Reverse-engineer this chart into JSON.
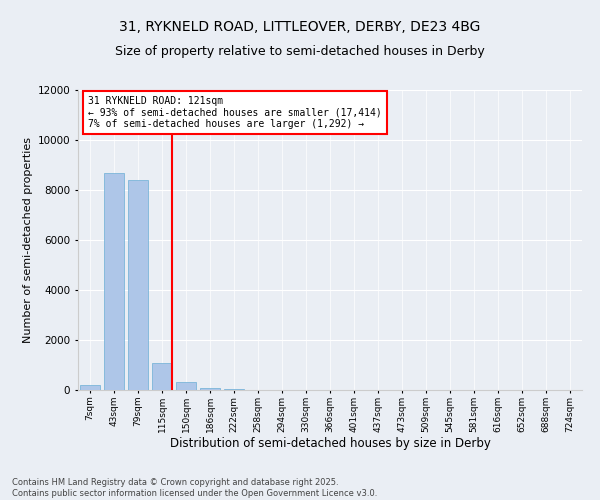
{
  "title1": "31, RYKNELD ROAD, LITTLEOVER, DERBY, DE23 4BG",
  "title2": "Size of property relative to semi-detached houses in Derby",
  "xlabel": "Distribution of semi-detached houses by size in Derby",
  "ylabel": "Number of semi-detached properties",
  "categories": [
    "7sqm",
    "43sqm",
    "79sqm",
    "115sqm",
    "150sqm",
    "186sqm",
    "222sqm",
    "258sqm",
    "294sqm",
    "330sqm",
    "366sqm",
    "401sqm",
    "437sqm",
    "473sqm",
    "509sqm",
    "545sqm",
    "581sqm",
    "616sqm",
    "652sqm",
    "688sqm",
    "724sqm"
  ],
  "values": [
    200,
    8700,
    8400,
    1100,
    330,
    90,
    50,
    0,
    0,
    0,
    0,
    0,
    0,
    0,
    0,
    0,
    0,
    0,
    0,
    0,
    0
  ],
  "bar_color": "#aec6e8",
  "bar_edgecolor": "#6baed6",
  "bg_color": "#eaeef4",
  "vline_color": "red",
  "annotation_text": "31 RYKNELD ROAD: 121sqm\n← 93% of semi-detached houses are smaller (17,414)\n7% of semi-detached houses are larger (1,292) →",
  "ylim": [
    0,
    12000
  ],
  "yticks": [
    0,
    2000,
    4000,
    6000,
    8000,
    10000,
    12000
  ],
  "footer": "Contains HM Land Registry data © Crown copyright and database right 2025.\nContains public sector information licensed under the Open Government Licence v3.0.",
  "title1_fontsize": 10,
  "title2_fontsize": 9,
  "xlabel_fontsize": 8.5,
  "ylabel_fontsize": 8,
  "annotation_fontsize": 7,
  "footer_fontsize": 6
}
